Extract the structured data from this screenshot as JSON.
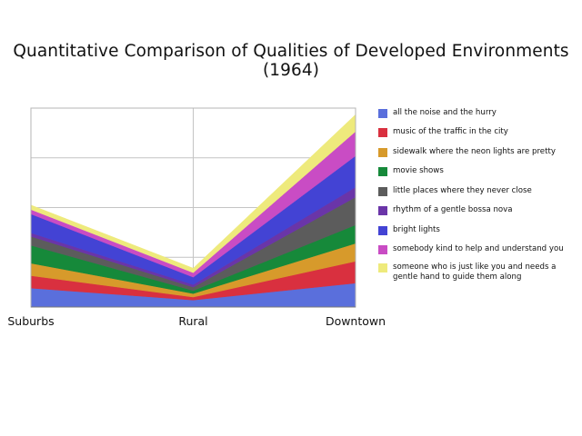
{
  "chart_data": {
    "type": "area",
    "stacked": true,
    "title": "Quantitative Comparison of Qualities of Developed Environments (1964)",
    "categories": [
      "Suburbs",
      "Rural",
      "Downtown"
    ],
    "ylim": [
      0,
      4
    ],
    "grid": true,
    "legend_position": "right",
    "series": [
      {
        "name": "all the noise and the hurry",
        "color": "#5a6fdc",
        "values": [
          0.38,
          0.14,
          0.48
        ]
      },
      {
        "name": "music of the traffic in the city",
        "color": "#d9303f",
        "values": [
          0.25,
          0.06,
          0.44
        ]
      },
      {
        "name": "sidewalk where the neon lights are pretty",
        "color": "#d79a2b",
        "values": [
          0.25,
          0.07,
          0.36
        ]
      },
      {
        "name": "movie shows",
        "color": "#16893a",
        "values": [
          0.36,
          0.06,
          0.37
        ]
      },
      {
        "name": "little places where they never close",
        "color": "#5c5c5c",
        "values": [
          0.18,
          0.07,
          0.56
        ]
      },
      {
        "name": "rhythm of a gentle bossa nova",
        "color": "#6a35a8",
        "values": [
          0.07,
          0.05,
          0.2
        ]
      },
      {
        "name": "bright lights",
        "color": "#4343d4",
        "values": [
          0.38,
          0.15,
          0.63
        ]
      },
      {
        "name": "somebody kind to help and understand you",
        "color": "#c94cc4",
        "values": [
          0.09,
          0.09,
          0.49
        ]
      },
      {
        "name": "someone who is just like you and needs a gentle hand to guide them along",
        "color": "#eeea7c",
        "values": [
          0.09,
          0.09,
          0.34
        ]
      }
    ]
  }
}
